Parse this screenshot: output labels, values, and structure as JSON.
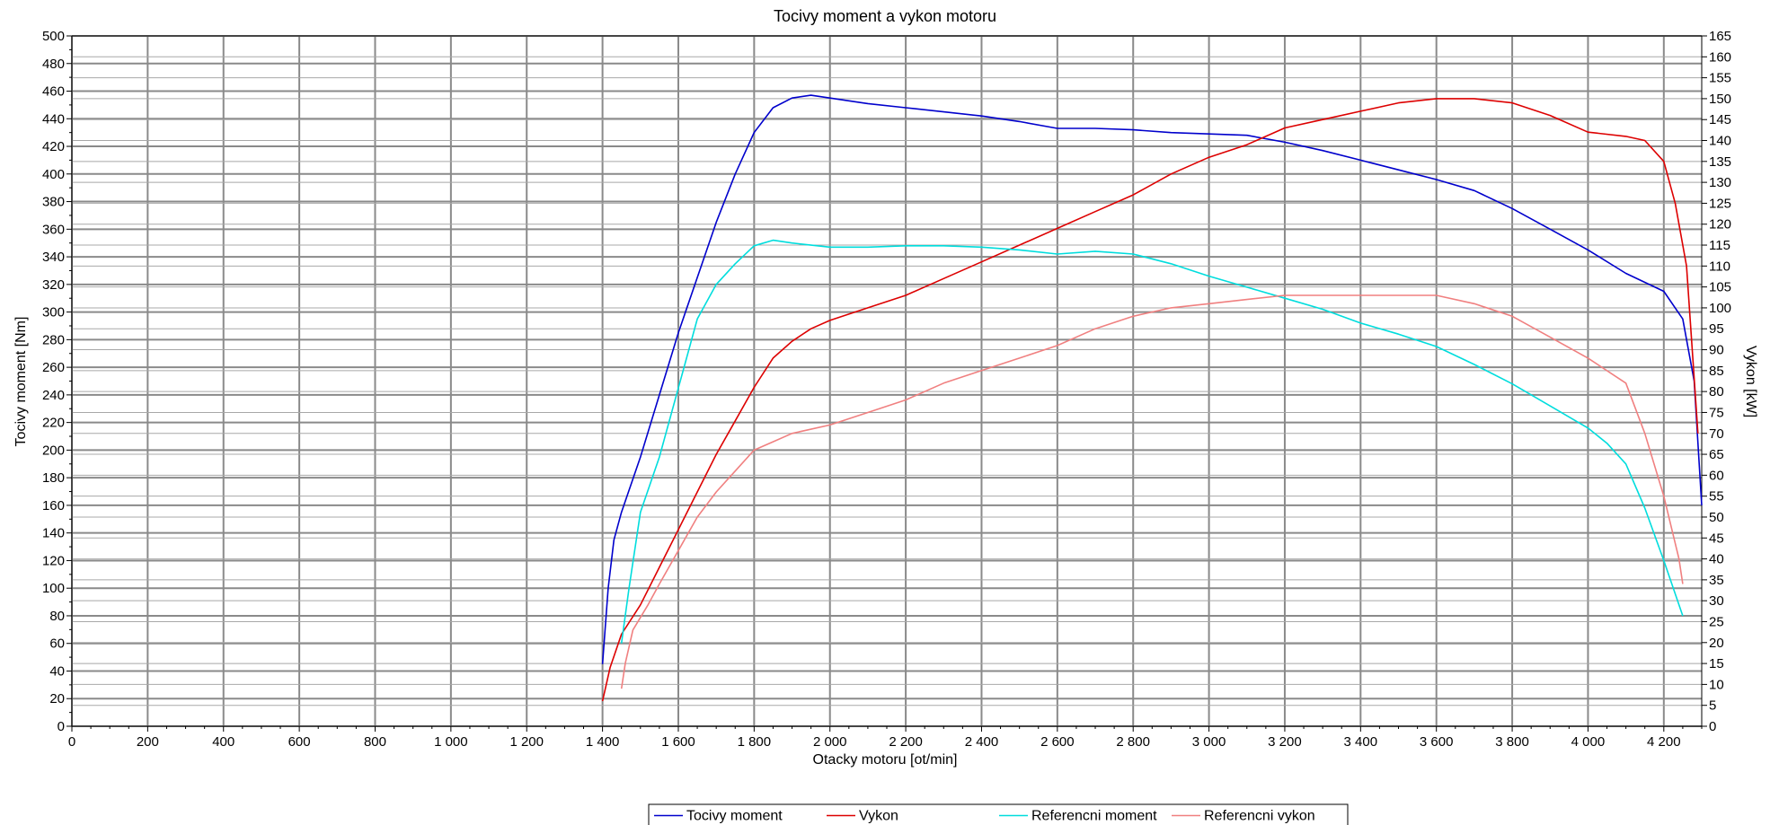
{
  "chart_data": {
    "type": "line",
    "title": "Tocivy moment a vykon motoru",
    "xlabel": "Otacky motoru [ot/min]",
    "ylabel": "Tocivy moment [Nm]",
    "y2label": "Vykon [kW]",
    "xlim": [
      0,
      4300
    ],
    "ylim": [
      0,
      500
    ],
    "y2lim": [
      0,
      165
    ],
    "grid": true,
    "legend_position": "bottom-center",
    "x_tick_labels": [
      "0",
      "200",
      "400",
      "600",
      "800",
      "1 000",
      "1 200",
      "1 400",
      "1 600",
      "1 800",
      "2 000",
      "2 200",
      "2 400",
      "2 600",
      "2 800",
      "3 000",
      "3 200",
      "3 400",
      "3 600",
      "3 800",
      "4 000",
      "4 200"
    ],
    "y_tick_labels": [
      "0",
      "20",
      "40",
      "60",
      "80",
      "100",
      "120",
      "140",
      "160",
      "180",
      "200",
      "220",
      "240",
      "260",
      "280",
      "300",
      "320",
      "340",
      "360",
      "380",
      "400",
      "420",
      "440",
      "460",
      "480",
      "500"
    ],
    "y2_tick_labels": [
      "0",
      "5",
      "10",
      "15",
      "20",
      "25",
      "30",
      "35",
      "40",
      "45",
      "50",
      "55",
      "60",
      "65",
      "70",
      "75",
      "80",
      "85",
      "90",
      "95",
      "100",
      "105",
      "110",
      "115",
      "120",
      "125",
      "130",
      "135",
      "140",
      "145",
      "150",
      "155",
      "160",
      "165"
    ],
    "series": [
      {
        "name": "Tocivy moment",
        "axis": "left",
        "color": "#0000cc",
        "points": [
          [
            1400,
            45
          ],
          [
            1415,
            100
          ],
          [
            1430,
            135
          ],
          [
            1450,
            155
          ],
          [
            1500,
            195
          ],
          [
            1550,
            240
          ],
          [
            1600,
            285
          ],
          [
            1650,
            325
          ],
          [
            1700,
            365
          ],
          [
            1750,
            400
          ],
          [
            1800,
            430
          ],
          [
            1850,
            448
          ],
          [
            1900,
            455
          ],
          [
            1950,
            457
          ],
          [
            2000,
            455
          ],
          [
            2100,
            451
          ],
          [
            2200,
            448
          ],
          [
            2300,
            445
          ],
          [
            2400,
            442
          ],
          [
            2500,
            438
          ],
          [
            2600,
            433
          ],
          [
            2700,
            433
          ],
          [
            2800,
            432
          ],
          [
            2900,
            430
          ],
          [
            3000,
            429
          ],
          [
            3100,
            428
          ],
          [
            3200,
            423
          ],
          [
            3300,
            417
          ],
          [
            3400,
            410
          ],
          [
            3500,
            403
          ],
          [
            3600,
            396
          ],
          [
            3700,
            388
          ],
          [
            3800,
            375
          ],
          [
            3900,
            360
          ],
          [
            4000,
            345
          ],
          [
            4100,
            328
          ],
          [
            4200,
            315
          ],
          [
            4250,
            295
          ],
          [
            4280,
            250
          ],
          [
            4300,
            160
          ]
        ]
      },
      {
        "name": "Vykon",
        "axis": "right",
        "color": "#dd0000",
        "points": [
          [
            1400,
            6
          ],
          [
            1420,
            14
          ],
          [
            1450,
            22
          ],
          [
            1500,
            29
          ],
          [
            1550,
            38
          ],
          [
            1600,
            47
          ],
          [
            1650,
            56
          ],
          [
            1700,
            65
          ],
          [
            1750,
            73
          ],
          [
            1800,
            81
          ],
          [
            1850,
            88
          ],
          [
            1900,
            92
          ],
          [
            1950,
            95
          ],
          [
            2000,
            97
          ],
          [
            2100,
            100
          ],
          [
            2200,
            103
          ],
          [
            2300,
            107
          ],
          [
            2400,
            111
          ],
          [
            2500,
            115
          ],
          [
            2600,
            119
          ],
          [
            2700,
            123
          ],
          [
            2800,
            127
          ],
          [
            2900,
            132
          ],
          [
            3000,
            136
          ],
          [
            3100,
            139
          ],
          [
            3200,
            143
          ],
          [
            3300,
            145
          ],
          [
            3400,
            147
          ],
          [
            3500,
            149
          ],
          [
            3600,
            150
          ],
          [
            3700,
            150
          ],
          [
            3800,
            149
          ],
          [
            3900,
            146
          ],
          [
            4000,
            142
          ],
          [
            4100,
            141
          ],
          [
            4150,
            140
          ],
          [
            4200,
            135
          ],
          [
            4230,
            125
          ],
          [
            4260,
            110
          ],
          [
            4290,
            70
          ]
        ]
      },
      {
        "name": "Referencni moment",
        "axis": "left",
        "color": "#00dddd",
        "points": [
          [
            1450,
            60
          ],
          [
            1470,
            100
          ],
          [
            1500,
            155
          ],
          [
            1550,
            195
          ],
          [
            1600,
            245
          ],
          [
            1650,
            295
          ],
          [
            1700,
            320
          ],
          [
            1750,
            335
          ],
          [
            1800,
            348
          ],
          [
            1850,
            352
          ],
          [
            1900,
            350
          ],
          [
            2000,
            347
          ],
          [
            2100,
            347
          ],
          [
            2200,
            348
          ],
          [
            2300,
            348
          ],
          [
            2400,
            347
          ],
          [
            2500,
            345
          ],
          [
            2600,
            342
          ],
          [
            2700,
            344
          ],
          [
            2800,
            342
          ],
          [
            2900,
            335
          ],
          [
            3000,
            326
          ],
          [
            3100,
            318
          ],
          [
            3200,
            310
          ],
          [
            3300,
            302
          ],
          [
            3400,
            292
          ],
          [
            3500,
            284
          ],
          [
            3600,
            275
          ],
          [
            3700,
            262
          ],
          [
            3800,
            248
          ],
          [
            3900,
            232
          ],
          [
            4000,
            216
          ],
          [
            4050,
            205
          ],
          [
            4100,
            190
          ],
          [
            4150,
            158
          ],
          [
            4200,
            120
          ],
          [
            4250,
            80
          ]
        ]
      },
      {
        "name": "Referencni vykon",
        "axis": "right",
        "color": "#f08080",
        "points": [
          [
            1450,
            9
          ],
          [
            1460,
            15
          ],
          [
            1480,
            23
          ],
          [
            1520,
            29
          ],
          [
            1550,
            34
          ],
          [
            1600,
            42
          ],
          [
            1650,
            50
          ],
          [
            1700,
            56
          ],
          [
            1750,
            61
          ],
          [
            1800,
            66
          ],
          [
            1850,
            68
          ],
          [
            1900,
            70
          ],
          [
            2000,
            72
          ],
          [
            2100,
            75
          ],
          [
            2200,
            78
          ],
          [
            2300,
            82
          ],
          [
            2400,
            85
          ],
          [
            2500,
            88
          ],
          [
            2600,
            91
          ],
          [
            2700,
            95
          ],
          [
            2800,
            98
          ],
          [
            2900,
            100
          ],
          [
            3000,
            101
          ],
          [
            3100,
            102
          ],
          [
            3200,
            103
          ],
          [
            3300,
            103
          ],
          [
            3400,
            103
          ],
          [
            3500,
            103
          ],
          [
            3600,
            103
          ],
          [
            3700,
            101
          ],
          [
            3800,
            98
          ],
          [
            3900,
            93
          ],
          [
            4000,
            88
          ],
          [
            4100,
            82
          ],
          [
            4150,
            70
          ],
          [
            4200,
            55
          ],
          [
            4240,
            40
          ],
          [
            4250,
            34
          ]
        ]
      }
    ]
  }
}
